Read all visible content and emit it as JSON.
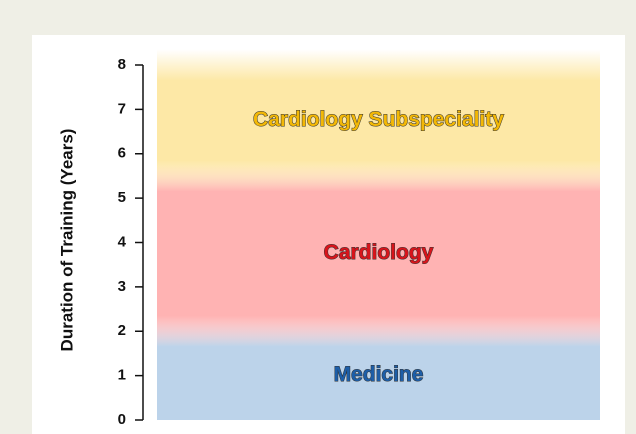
{
  "chart_data": {
    "type": "bar",
    "stacked": true,
    "ylabel": "Duration of Training (Years)",
    "categories": [
      null
    ],
    "series": [
      {
        "name": "Medicine",
        "color": "#bcd3ea",
        "label_color": "#1d5ea8",
        "values": [
          2
        ]
      },
      {
        "name": "Cardiology",
        "color": "#ffb3b3",
        "label_color": "#d8141b",
        "values": [
          3.5
        ]
      },
      {
        "name": "Cardiology Subspeciality",
        "color": "#fde8a6",
        "label_color": "#f3b806",
        "values": [
          2.5
        ]
      }
    ],
    "ylim": [
      0,
      8
    ],
    "yticks": [
      0,
      1,
      2,
      3,
      4,
      5,
      6,
      7,
      8
    ]
  }
}
